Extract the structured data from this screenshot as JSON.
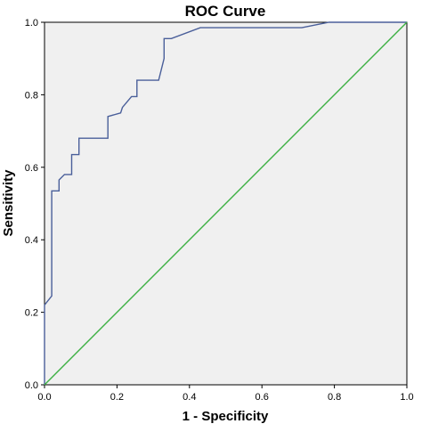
{
  "chart_data": {
    "type": "line",
    "title": "ROC Curve",
    "xlabel": "1 - Specificity",
    "ylabel": "Sensitivity",
    "xlim": [
      0,
      1
    ],
    "ylim": [
      0,
      1
    ],
    "x_ticks": [
      "0.0",
      "0.2",
      "0.4",
      "0.6",
      "0.8",
      "1.0"
    ],
    "y_ticks": [
      "0.0",
      "0.2",
      "0.4",
      "0.6",
      "0.8",
      "1.0"
    ],
    "grid": false,
    "legend": "none",
    "plot_background": "#f0f0f0",
    "series": [
      {
        "color": "#4a5f9a",
        "x": [
          0.0,
          0.0,
          0.02,
          0.02,
          0.04,
          0.04,
          0.055,
          0.075,
          0.075,
          0.095,
          0.095,
          0.175,
          0.175,
          0.21,
          0.215,
          0.24,
          0.255,
          0.255,
          0.315,
          0.33,
          0.33,
          0.35,
          0.43,
          0.71,
          0.785,
          1.0
        ],
        "y": [
          0.0,
          0.22,
          0.245,
          0.535,
          0.535,
          0.565,
          0.58,
          0.58,
          0.635,
          0.635,
          0.68,
          0.68,
          0.74,
          0.75,
          0.765,
          0.795,
          0.795,
          0.84,
          0.84,
          0.9,
          0.955,
          0.955,
          0.985,
          0.985,
          1.0,
          1.0
        ]
      },
      {
        "color": "#3cb043",
        "x": [
          0.0,
          1.0
        ],
        "y": [
          0.0,
          1.0
        ]
      }
    ]
  }
}
